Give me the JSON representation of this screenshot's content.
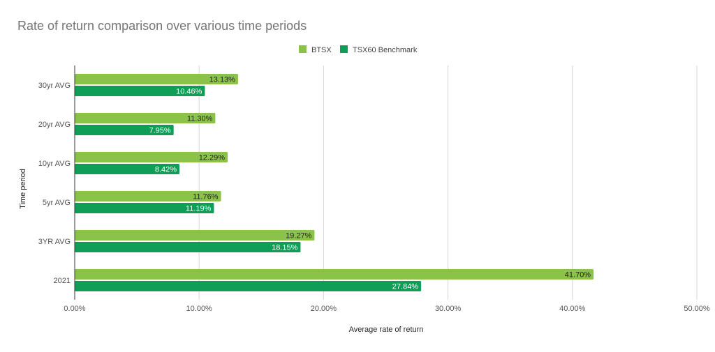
{
  "chart_data": {
    "type": "bar",
    "orientation": "horizontal",
    "title": "Rate of return comparison over various time periods",
    "xlabel": "Average rate of return",
    "ylabel": "Time period",
    "categories": [
      "30yr AVG",
      "20yr AVG",
      "10yr AVG",
      "5yr AVG",
      "3YR AVG",
      "2021"
    ],
    "series": [
      {
        "name": "BTSX",
        "color": "#8bc34a",
        "values": [
          13.13,
          11.3,
          12.29,
          11.76,
          19.27,
          41.7
        ],
        "labels": [
          "13.13%",
          "11.30%",
          "12.29%",
          "11.76%",
          "19.27%",
          "41.70%"
        ],
        "label_color": "#212121"
      },
      {
        "name": "TSX60 Benchmark",
        "color": "#0f9d58",
        "values": [
          10.46,
          7.95,
          8.42,
          11.19,
          18.15,
          27.84
        ],
        "labels": [
          "10.46%",
          "7.95%",
          "8.42%",
          "11.19%",
          "18.15%",
          "27.84%"
        ],
        "label_color": "#ffffff"
      }
    ],
    "xlim": [
      0,
      50
    ],
    "xticks": [
      0,
      10,
      20,
      30,
      40,
      50
    ],
    "xtick_labels": [
      "0.00%",
      "10.00%",
      "20.00%",
      "30.00%",
      "40.00%",
      "50.00%"
    ],
    "grid": "vertical",
    "legend": "top-center"
  }
}
